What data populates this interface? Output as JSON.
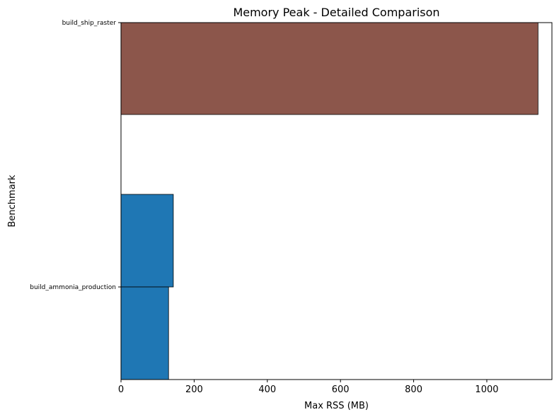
{
  "chart_data": {
    "type": "bar",
    "orientation": "horizontal",
    "title": "Memory Peak - Detailed Comparison",
    "xlabel": "Max RSS (MB)",
    "ylabel": "Benchmark",
    "xlim": [
      0,
      1178
    ],
    "xticks": [
      0,
      200,
      400,
      600,
      800,
      1000
    ],
    "categories": [
      "build_ship_raster",
      "build_ammonia_production"
    ],
    "bars": [
      {
        "category": "build_ship_raster",
        "value": 1140,
        "color": "#8c564b"
      },
      {
        "category": "build_ammonia_production",
        "value": 143,
        "color": "#1f77b4"
      },
      {
        "category": "build_ammonia_production",
        "value": 130,
        "color": "#1f77b4"
      }
    ],
    "grid": false,
    "legend": "none"
  }
}
